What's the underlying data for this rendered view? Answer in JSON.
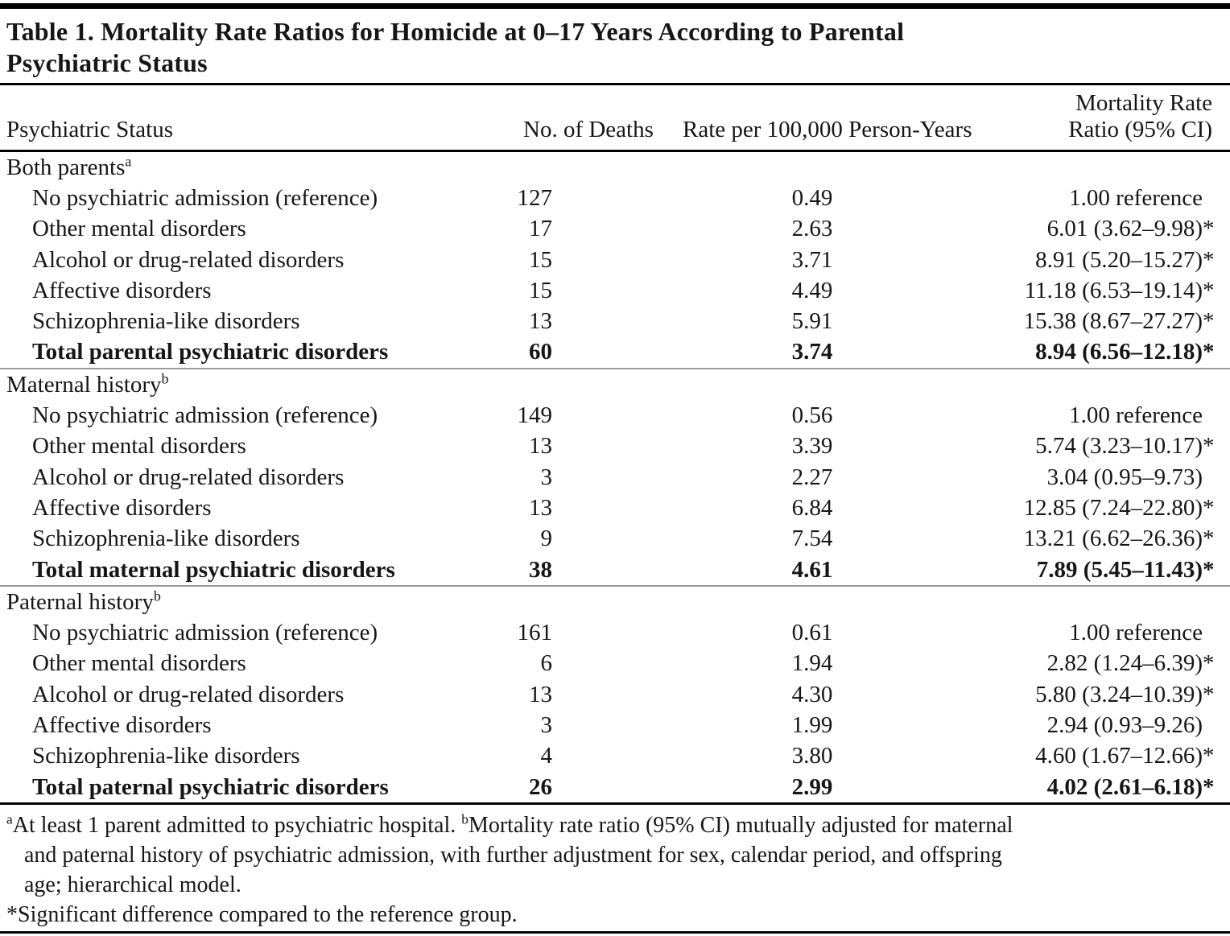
{
  "title": {
    "line1": "Table 1. Mortality Rate Ratios for Homicide at 0–17 Years According to Parental",
    "line2": "Psychiatric Status"
  },
  "columns": {
    "status": "Psychiatric Status",
    "deaths": "No. of Deaths",
    "rate": "Rate per 100,000 Person-Years",
    "ratio_line1": "Mortality Rate",
    "ratio_line2": "Ratio (95% CI)"
  },
  "table": {
    "sections": [
      {
        "label": "Both parents",
        "sup": "a",
        "rows": [
          {
            "label": "No psychiatric admission (reference)",
            "deaths": "127",
            "rate": "0.49",
            "ratio": "1.00 reference",
            "sig": "",
            "bold": false
          },
          {
            "label": "Other mental disorders",
            "deaths": "17",
            "rate": "2.63",
            "ratio": "6.01 (3.62–9.98)",
            "sig": "*",
            "bold": false
          },
          {
            "label": "Alcohol or drug-related disorders",
            "deaths": "15",
            "rate": "3.71",
            "ratio": "8.91 (5.20–15.27)",
            "sig": "*",
            "bold": false
          },
          {
            "label": "Affective disorders",
            "deaths": "15",
            "rate": "4.49",
            "ratio": "11.18 (6.53–19.14)",
            "sig": "*",
            "bold": false
          },
          {
            "label": "Schizophrenia-like disorders",
            "deaths": "13",
            "rate": "5.91",
            "ratio": "15.38 (8.67–27.27)",
            "sig": "*",
            "bold": false
          },
          {
            "label": "Total parental psychiatric disorders",
            "deaths": "60",
            "rate": "3.74",
            "ratio": "8.94 (6.56–12.18)",
            "sig": "*",
            "bold": true
          }
        ]
      },
      {
        "label": "Maternal history",
        "sup": "b",
        "rows": [
          {
            "label": "No psychiatric admission (reference)",
            "deaths": "149",
            "rate": "0.56",
            "ratio": "1.00 reference",
            "sig": "",
            "bold": false
          },
          {
            "label": "Other mental disorders",
            "deaths": "13",
            "rate": "3.39",
            "ratio": "5.74 (3.23–10.17)",
            "sig": "*",
            "bold": false
          },
          {
            "label": "Alcohol or drug-related disorders",
            "deaths": "3",
            "rate": "2.27",
            "ratio": "3.04 (0.95–9.73)",
            "sig": "",
            "bold": false
          },
          {
            "label": "Affective disorders",
            "deaths": "13",
            "rate": "6.84",
            "ratio": "12.85 (7.24–22.80)",
            "sig": "*",
            "bold": false
          },
          {
            "label": "Schizophrenia-like disorders",
            "deaths": "9",
            "rate": "7.54",
            "ratio": "13.21 (6.62–26.36)",
            "sig": "*",
            "bold": false
          },
          {
            "label": "Total maternal psychiatric disorders",
            "deaths": "38",
            "rate": "4.61",
            "ratio": "7.89 (5.45–11.43)",
            "sig": "*",
            "bold": true
          }
        ]
      },
      {
        "label": "Paternal history",
        "sup": "b",
        "rows": [
          {
            "label": "No psychiatric admission (reference)",
            "deaths": "161",
            "rate": "0.61",
            "ratio": "1.00 reference",
            "sig": "",
            "bold": false
          },
          {
            "label": "Other mental disorders",
            "deaths": "6",
            "rate": "1.94",
            "ratio": "2.82 (1.24–6.39)",
            "sig": "*",
            "bold": false
          },
          {
            "label": "Alcohol or drug-related disorders",
            "deaths": "13",
            "rate": "4.30",
            "ratio": "5.80 (3.24–10.39)",
            "sig": "*",
            "bold": false
          },
          {
            "label": "Affective disorders",
            "deaths": "3",
            "rate": "1.99",
            "ratio": "2.94 (0.93–9.26)",
            "sig": "",
            "bold": false
          },
          {
            "label": "Schizophrenia-like disorders",
            "deaths": "4",
            "rate": "3.80",
            "ratio": "4.60 (1.67–12.66)",
            "sig": "*",
            "bold": false
          },
          {
            "label": "Total paternal psychiatric disorders",
            "deaths": "26",
            "rate": "2.99",
            "ratio": "4.02 (2.61–6.18)",
            "sig": "*",
            "bold": true
          }
        ]
      }
    ]
  },
  "footnotes": {
    "a_sup": "a",
    "a_text": "At least 1 parent admitted to psychiatric hospital. ",
    "b_sup": "b",
    "b_text": "Mortality rate ratio (95% CI) mutually adjusted for maternal",
    "cont_lines": [
      "and paternal history of psychiatric admission, with further adjustment for sex, calendar period, and offspring",
      "age; hierarchical model."
    ],
    "star_line": "*Significant difference compared to the reference group."
  }
}
